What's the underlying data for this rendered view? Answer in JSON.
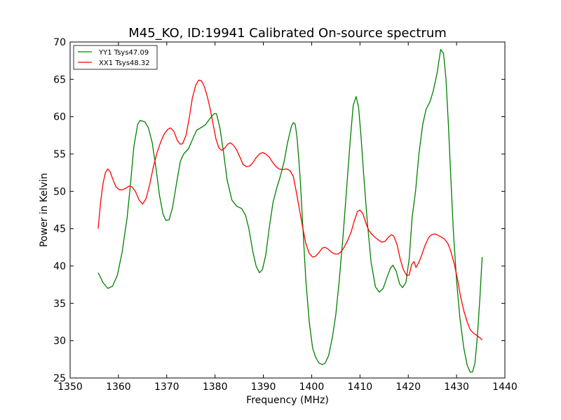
{
  "chart_data": {
    "type": "line",
    "title": "M45_KO, ID:19941 Calibrated On-source spectrum",
    "xlabel": "Frequency (MHz)",
    "ylabel": "Power in Kelvin",
    "xlim": [
      1350,
      1440
    ],
    "ylim": [
      25,
      70
    ],
    "xticks": [
      1350,
      1360,
      1370,
      1380,
      1390,
      1400,
      1410,
      1420,
      1430,
      1440
    ],
    "yticks": [
      25,
      30,
      35,
      40,
      45,
      50,
      55,
      60,
      65,
      70
    ],
    "grid": false,
    "legend_position": "top-left",
    "series": [
      {
        "name": "YY1 Tsys47.09",
        "color": "#008000",
        "points": [
          [
            1355.8,
            39.1
          ],
          [
            1356.8,
            37.8
          ],
          [
            1357.8,
            37.0
          ],
          [
            1358.8,
            37.3
          ],
          [
            1359.8,
            38.8
          ],
          [
            1360.8,
            42.0
          ],
          [
            1361.8,
            46.5
          ],
          [
            1362.5,
            51.0
          ],
          [
            1363.2,
            56.0
          ],
          [
            1364.0,
            59.0
          ],
          [
            1364.5,
            59.5
          ],
          [
            1365.5,
            59.3
          ],
          [
            1366.2,
            58.5
          ],
          [
            1367.0,
            56.5
          ],
          [
            1367.8,
            53.0
          ],
          [
            1368.5,
            49.5
          ],
          [
            1369.2,
            47.0
          ],
          [
            1369.8,
            46.1
          ],
          [
            1370.5,
            46.2
          ],
          [
            1371.2,
            47.8
          ],
          [
            1372.0,
            51.0
          ],
          [
            1372.8,
            54.0
          ],
          [
            1373.5,
            55.0
          ],
          [
            1374.5,
            55.7
          ],
          [
            1375.5,
            57.2
          ],
          [
            1376.2,
            58.2
          ],
          [
            1377.0,
            58.5
          ],
          [
            1378.0,
            58.9
          ],
          [
            1379.0,
            59.8
          ],
          [
            1379.8,
            60.4
          ],
          [
            1380.3,
            60.4
          ],
          [
            1381.0,
            58.5
          ],
          [
            1381.8,
            55.0
          ],
          [
            1382.5,
            51.5
          ],
          [
            1383.5,
            48.8
          ],
          [
            1384.5,
            48.0
          ],
          [
            1385.5,
            47.7
          ],
          [
            1386.3,
            46.8
          ],
          [
            1387.0,
            45.0
          ],
          [
            1387.8,
            42.0
          ],
          [
            1388.5,
            40.0
          ],
          [
            1389.2,
            39.1
          ],
          [
            1389.8,
            39.5
          ],
          [
            1390.5,
            41.5
          ],
          [
            1391.2,
            45.0
          ],
          [
            1392.0,
            48.5
          ],
          [
            1392.8,
            50.5
          ],
          [
            1393.5,
            52.0
          ],
          [
            1394.3,
            54.0
          ],
          [
            1395.0,
            56.5
          ],
          [
            1395.8,
            58.7
          ],
          [
            1396.2,
            59.2
          ],
          [
            1396.6,
            59.0
          ],
          [
            1397.0,
            57.0
          ],
          [
            1397.6,
            52.0
          ],
          [
            1398.2,
            45.0
          ],
          [
            1398.8,
            38.0
          ],
          [
            1399.5,
            32.5
          ],
          [
            1400.2,
            29.0
          ],
          [
            1400.8,
            27.8
          ],
          [
            1401.5,
            27.0
          ],
          [
            1402.2,
            26.8
          ],
          [
            1402.8,
            27.0
          ],
          [
            1403.5,
            28.0
          ],
          [
            1404.3,
            30.5
          ],
          [
            1405.0,
            33.5
          ],
          [
            1405.7,
            38.0
          ],
          [
            1406.5,
            44.0
          ],
          [
            1407.2,
            50.0
          ],
          [
            1408.0,
            57.0
          ],
          [
            1408.6,
            61.5
          ],
          [
            1409.2,
            62.7
          ],
          [
            1409.7,
            61.3
          ],
          [
            1410.2,
            57.5
          ],
          [
            1410.8,
            52.0
          ],
          [
            1411.5,
            46.0
          ],
          [
            1412.3,
            40.5
          ],
          [
            1413.2,
            37.2
          ],
          [
            1414.0,
            36.5
          ],
          [
            1414.8,
            37.0
          ],
          [
            1415.5,
            38.3
          ],
          [
            1416.3,
            39.7
          ],
          [
            1416.8,
            40.1
          ],
          [
            1417.5,
            39.3
          ],
          [
            1418.2,
            37.6
          ],
          [
            1418.8,
            37.1
          ],
          [
            1419.5,
            37.8
          ],
          [
            1420.2,
            41.0
          ],
          [
            1420.8,
            46.5
          ],
          [
            1421.5,
            50.0
          ],
          [
            1422.2,
            55.0
          ],
          [
            1423.0,
            59.0
          ],
          [
            1423.7,
            61.0
          ],
          [
            1424.5,
            62.0
          ],
          [
            1425.2,
            63.5
          ],
          [
            1426.0,
            66.0
          ],
          [
            1426.7,
            69.0
          ],
          [
            1427.3,
            68.5
          ],
          [
            1427.8,
            65.0
          ],
          [
            1428.3,
            59.0
          ],
          [
            1428.8,
            52.0
          ],
          [
            1429.3,
            45.0
          ],
          [
            1430.0,
            38.0
          ],
          [
            1430.7,
            33.0
          ],
          [
            1431.5,
            29.0
          ],
          [
            1432.2,
            26.7
          ],
          [
            1432.8,
            25.8
          ],
          [
            1433.3,
            25.8
          ],
          [
            1433.8,
            27.0
          ],
          [
            1434.3,
            30.5
          ],
          [
            1434.8,
            35.5
          ],
          [
            1435.3,
            41.2
          ]
        ]
      },
      {
        "name": "XX1 Tsys48.32",
        "color": "#ff0000",
        "points": [
          [
            1355.8,
            45.0
          ],
          [
            1356.3,
            48.5
          ],
          [
            1356.8,
            51.0
          ],
          [
            1357.3,
            52.5
          ],
          [
            1357.8,
            53.0
          ],
          [
            1358.3,
            52.6
          ],
          [
            1358.9,
            51.5
          ],
          [
            1359.5,
            50.6
          ],
          [
            1360.2,
            50.2
          ],
          [
            1360.8,
            50.2
          ],
          [
            1361.5,
            50.4
          ],
          [
            1362.2,
            50.7
          ],
          [
            1362.8,
            50.6
          ],
          [
            1363.5,
            50.0
          ],
          [
            1364.3,
            48.8
          ],
          [
            1365.0,
            48.3
          ],
          [
            1365.7,
            49.0
          ],
          [
            1366.5,
            51.0
          ],
          [
            1367.2,
            53.2
          ],
          [
            1368.0,
            55.2
          ],
          [
            1368.8,
            56.7
          ],
          [
            1369.5,
            57.7
          ],
          [
            1370.2,
            58.3
          ],
          [
            1370.8,
            58.5
          ],
          [
            1371.5,
            58.0
          ],
          [
            1372.2,
            56.8
          ],
          [
            1372.8,
            56.3
          ],
          [
            1373.3,
            56.4
          ],
          [
            1374.0,
            57.5
          ],
          [
            1374.7,
            60.0
          ],
          [
            1375.3,
            62.5
          ],
          [
            1376.0,
            64.2
          ],
          [
            1376.6,
            64.9
          ],
          [
            1377.2,
            64.8
          ],
          [
            1377.8,
            64.0
          ],
          [
            1378.4,
            62.7
          ],
          [
            1379.0,
            61.0
          ],
          [
            1379.6,
            59.0
          ],
          [
            1380.2,
            57.0
          ],
          [
            1380.8,
            55.8
          ],
          [
            1381.4,
            55.5
          ],
          [
            1382.0,
            55.8
          ],
          [
            1382.6,
            56.3
          ],
          [
            1383.2,
            56.5
          ],
          [
            1383.8,
            56.2
          ],
          [
            1384.5,
            55.5
          ],
          [
            1385.2,
            54.5
          ],
          [
            1385.8,
            53.6
          ],
          [
            1386.5,
            53.3
          ],
          [
            1387.2,
            53.4
          ],
          [
            1387.8,
            53.8
          ],
          [
            1388.5,
            54.5
          ],
          [
            1389.2,
            55.0
          ],
          [
            1389.8,
            55.2
          ],
          [
            1390.5,
            55.0
          ],
          [
            1391.2,
            54.6
          ],
          [
            1391.8,
            54.0
          ],
          [
            1392.5,
            53.4
          ],
          [
            1393.2,
            53.0
          ],
          [
            1394.0,
            52.9
          ],
          [
            1394.8,
            53.0
          ],
          [
            1395.5,
            52.8
          ],
          [
            1396.2,
            52.0
          ],
          [
            1396.8,
            50.0
          ],
          [
            1397.5,
            47.5
          ],
          [
            1398.2,
            45.0
          ],
          [
            1398.8,
            43.0
          ],
          [
            1399.5,
            41.7
          ],
          [
            1400.2,
            41.2
          ],
          [
            1400.8,
            41.3
          ],
          [
            1401.5,
            41.8
          ],
          [
            1402.2,
            42.4
          ],
          [
            1402.8,
            42.5
          ],
          [
            1403.5,
            42.2
          ],
          [
            1404.2,
            41.8
          ],
          [
            1404.8,
            41.6
          ],
          [
            1405.5,
            41.6
          ],
          [
            1406.2,
            42.0
          ],
          [
            1406.8,
            42.6
          ],
          [
            1407.5,
            43.5
          ],
          [
            1408.2,
            44.6
          ],
          [
            1408.8,
            46.0
          ],
          [
            1409.5,
            47.3
          ],
          [
            1410.0,
            47.5
          ],
          [
            1410.6,
            47.0
          ],
          [
            1411.2,
            45.8
          ],
          [
            1411.8,
            44.8
          ],
          [
            1412.5,
            44.2
          ],
          [
            1413.2,
            43.8
          ],
          [
            1413.8,
            43.5
          ],
          [
            1414.5,
            43.2
          ],
          [
            1415.2,
            43.3
          ],
          [
            1415.8,
            43.8
          ],
          [
            1416.5,
            44.2
          ],
          [
            1417.0,
            44.0
          ],
          [
            1417.7,
            42.8
          ],
          [
            1418.3,
            41.0
          ],
          [
            1419.0,
            39.5
          ],
          [
            1419.7,
            38.7
          ],
          [
            1420.2,
            38.8
          ],
          [
            1420.7,
            40.2
          ],
          [
            1421.2,
            40.6
          ],
          [
            1421.6,
            39.8
          ],
          [
            1422.2,
            40.5
          ],
          [
            1422.8,
            41.5
          ],
          [
            1423.5,
            42.8
          ],
          [
            1424.2,
            43.8
          ],
          [
            1424.8,
            44.2
          ],
          [
            1425.5,
            44.3
          ],
          [
            1426.2,
            44.1
          ],
          [
            1426.8,
            43.9
          ],
          [
            1427.5,
            43.6
          ],
          [
            1428.2,
            43.0
          ],
          [
            1428.8,
            42.0
          ],
          [
            1429.5,
            40.3
          ],
          [
            1430.2,
            38.2
          ],
          [
            1430.8,
            36.0
          ],
          [
            1431.5,
            34.0
          ],
          [
            1432.2,
            32.5
          ],
          [
            1432.8,
            31.5
          ],
          [
            1433.5,
            31.0
          ],
          [
            1434.2,
            30.7
          ],
          [
            1434.8,
            30.4
          ],
          [
            1435.3,
            30.1
          ]
        ]
      }
    ]
  }
}
